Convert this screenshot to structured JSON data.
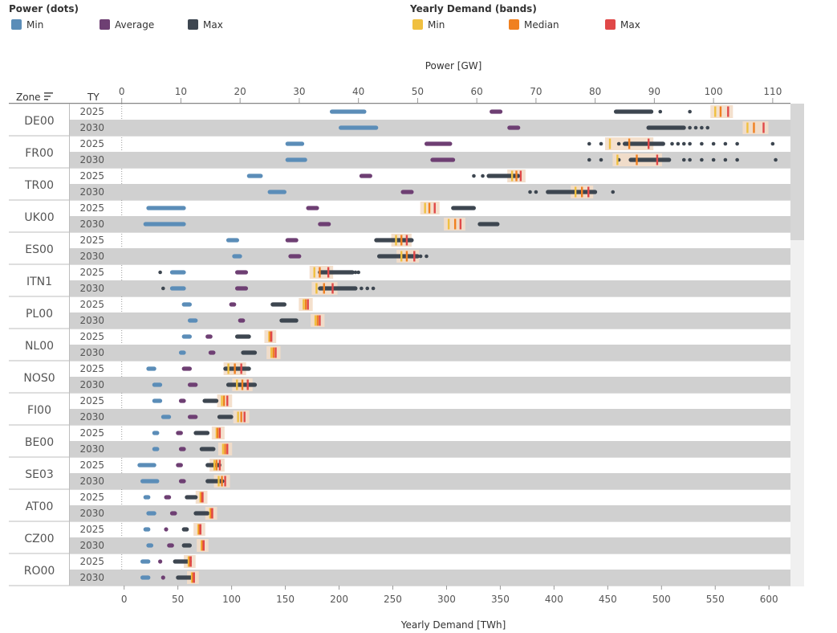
{
  "legend": {
    "power_title": "Power (dots)",
    "power_items": [
      {
        "label": "Min",
        "color": "#5b8db8"
      },
      {
        "label": "Average",
        "color": "#6e3f73"
      },
      {
        "label": "Max",
        "color": "#3d4650"
      }
    ],
    "demand_title": "Yearly Demand (bands)",
    "demand_items": [
      {
        "label": "Min",
        "color": "#f0c040"
      },
      {
        "label": "Median",
        "color": "#f08020"
      },
      {
        "label": "Max",
        "color": "#e04848"
      }
    ]
  },
  "headers": {
    "zone": "Zone",
    "ty": "TY"
  },
  "chart_data": {
    "type": "scatter",
    "top_axis": {
      "label": "Power [GW]",
      "range": [
        -0.5,
        113
      ],
      "ticks": [
        0,
        10,
        20,
        30,
        40,
        50,
        60,
        70,
        80,
        90,
        100,
        110
      ]
    },
    "bottom_axis": {
      "label": "Yearly Demand [TWh]",
      "range": [
        -5,
        620
      ],
      "ticks": [
        0,
        50,
        100,
        150,
        200,
        250,
        300,
        350,
        400,
        450,
        500,
        550,
        600
      ]
    },
    "rows": [
      {
        "zone": "DE00",
        "ty": "2025",
        "pmin": [
          35.5,
          41
        ],
        "pavg": [
          62.5,
          64
        ],
        "pmax": [
          83.5,
          89.5
        ],
        "pmax_out": [
          91,
          96
        ],
        "dmin": 550,
        "dmed": 555,
        "dmax": 562
      },
      {
        "zone": "DE00",
        "ty": "2030",
        "pmin": [
          37,
          43
        ],
        "pavg": [
          65.5,
          67
        ],
        "pmax": [
          89,
          95
        ],
        "pmax_out": [
          96,
          97,
          98,
          99
        ],
        "dmin": 580,
        "dmed": 586,
        "dmax": 595
      },
      {
        "zone": "FR00",
        "ty": "2025",
        "pmin": [
          28,
          30.5
        ],
        "pavg": [
          51.5,
          55.5
        ],
        "pmax": [
          85,
          91.5
        ],
        "pmax_out": [
          79,
          81,
          84,
          93,
          94,
          95,
          96,
          98,
          100,
          102,
          104,
          110
        ],
        "dmin": 452,
        "dmed": 470,
        "dmax": 488
      },
      {
        "zone": "FR00",
        "ty": "2030",
        "pmin": [
          28,
          31
        ],
        "pavg": [
          52.5,
          56
        ],
        "pmax": [
          86,
          92.5
        ],
        "pmax_out": [
          79,
          81,
          84,
          95,
          96,
          98,
          100,
          102,
          104,
          110.5
        ],
        "dmin": 459,
        "dmed": 477,
        "dmax": 496
      },
      {
        "zone": "TR00",
        "ty": "2025",
        "pmin": [
          21.5,
          23.5
        ],
        "pavg": [
          40.5,
          42
        ],
        "pmax": [
          62,
          67
        ],
        "pmax_out": [
          59.5,
          61
        ],
        "dmin": 361,
        "dmed": 365,
        "dmax": 369
      },
      {
        "zone": "TR00",
        "ty": "2030",
        "pmin": [
          25,
          27.5
        ],
        "pavg": [
          47.5,
          49
        ],
        "pmax": [
          72,
          80
        ],
        "pmax_out": [
          69,
          70,
          83
        ],
        "dmin": 420,
        "dmed": 426,
        "dmax": 432
      },
      {
        "zone": "UK00",
        "ty": "2025",
        "pmin": [
          4.5,
          10.5
        ],
        "pavg": [
          31.5,
          33
        ],
        "pmax": [
          56,
          59.5
        ],
        "pmax_out": [],
        "dmin": 280,
        "dmed": 284,
        "dmax": 289
      },
      {
        "zone": "UK00",
        "ty": "2030",
        "pmin": [
          4,
          10.5
        ],
        "pavg": [
          33.5,
          35
        ],
        "pmax": [
          60.5,
          63.5
        ],
        "pmax_out": [],
        "dmin": 302,
        "dmed": 308,
        "dmax": 313
      },
      {
        "zone": "ES00",
        "ty": "2025",
        "pmin": [
          18,
          19.5
        ],
        "pavg": [
          28,
          29.5
        ],
        "pmax": [
          43,
          49
        ],
        "pmax_out": [],
        "dmin": 253,
        "dmed": 258,
        "dmax": 263
      },
      {
        "zone": "ES00",
        "ty": "2030",
        "pmin": [
          19,
          20
        ],
        "pavg": [
          28.5,
          30
        ],
        "pmax": [
          43.5,
          50
        ],
        "pmax_out": [
          50.5,
          51.5
        ],
        "dmin": 258,
        "dmed": 263,
        "dmax": 270
      },
      {
        "zone": "ITN1",
        "ty": "2025",
        "pmin": [
          8.5,
          10.5
        ],
        "pavg": [
          19.5,
          21
        ],
        "pmax": [
          33.5,
          39
        ],
        "pmax_out": [
          6.5,
          39.5,
          40
        ],
        "dmin": 177,
        "dmed": 182,
        "dmax": 190
      },
      {
        "zone": "ITN1",
        "ty": "2030",
        "pmin": [
          8.5,
          10.5
        ],
        "pavg": [
          19.5,
          21
        ],
        "pmax": [
          33.5,
          39.5
        ],
        "pmax_out": [
          7,
          40.5,
          41.5,
          42.5
        ],
        "dmin": 179,
        "dmed": 186,
        "dmax": 194
      },
      {
        "zone": "PL00",
        "ty": "2025",
        "pmin": [
          10.5,
          11.5
        ],
        "pavg": [
          18.5,
          19
        ],
        "pmax": [
          25.5,
          27.5
        ],
        "pmax_out": [],
        "dmin": 167,
        "dmed": 169,
        "dmax": 171
      },
      {
        "zone": "PL00",
        "ty": "2030",
        "pmin": [
          11.5,
          12.5
        ],
        "pavg": [
          20,
          20.5
        ],
        "pmax": [
          27,
          29.5
        ],
        "pmax_out": [],
        "dmin": 178,
        "dmed": 180,
        "dmax": 182
      },
      {
        "zone": "NL00",
        "ty": "2025",
        "pmin": [
          10.5,
          11.5
        ],
        "pavg": [
          14.5,
          15
        ],
        "pmax": [
          19.5,
          21.5
        ],
        "pmax_out": [],
        "dmin": 135,
        "dmed": 136,
        "dmax": 137
      },
      {
        "zone": "NL00",
        "ty": "2030",
        "pmin": [
          10,
          10.5
        ],
        "pavg": [
          15,
          15.5
        ],
        "pmax": [
          20.5,
          22.5
        ],
        "pmax_out": [],
        "dmin": 137,
        "dmed": 139,
        "dmax": 141
      },
      {
        "zone": "NOS0",
        "ty": "2025",
        "pmin": [
          4.5,
          5.5
        ],
        "pavg": [
          10.5,
          11.5
        ],
        "pmax": [
          17.5,
          21.5
        ],
        "pmax_out": [],
        "dmin": 97,
        "dmed": 103,
        "dmax": 109
      },
      {
        "zone": "NOS0",
        "ty": "2030",
        "pmin": [
          5.5,
          6.5
        ],
        "pavg": [
          11.5,
          12.5
        ],
        "pmax": [
          18,
          22.5
        ],
        "pmax_out": [],
        "dmin": 105,
        "dmed": 110,
        "dmax": 115
      },
      {
        "zone": "FI00",
        "ty": "2025",
        "pmin": [
          5.5,
          6.5
        ],
        "pavg": [
          10,
          10.5
        ],
        "pmax": [
          14,
          16
        ],
        "pmax_out": [],
        "dmin": 91,
        "dmed": 93,
        "dmax": 96
      },
      {
        "zone": "FI00",
        "ty": "2030",
        "pmin": [
          7,
          8
        ],
        "pavg": [
          11.5,
          12.5
        ],
        "pmax": [
          16.5,
          18.5
        ],
        "pmax_out": [],
        "dmin": 106,
        "dmed": 109,
        "dmax": 112
      },
      {
        "zone": "BE00",
        "ty": "2025",
        "pmin": [
          5.5,
          6
        ],
        "pavg": [
          9.5,
          10
        ],
        "pmax": [
          12.5,
          14.5
        ],
        "pmax_out": [],
        "dmin": 86,
        "dmed": 87,
        "dmax": 89
      },
      {
        "zone": "BE00",
        "ty": "2030",
        "pmin": [
          5.5,
          6
        ],
        "pavg": [
          10,
          10.5
        ],
        "pmax": [
          13.5,
          15.5
        ],
        "pmax_out": [],
        "dmin": 92,
        "dmed": 94,
        "dmax": 96
      },
      {
        "zone": "SE03",
        "ty": "2025",
        "pmin": [
          3,
          5.5
        ],
        "pavg": [
          9.5,
          10
        ],
        "pmax": [
          14.5,
          16.5
        ],
        "pmax_out": [],
        "dmin": 84,
        "dmed": 86,
        "dmax": 89
      },
      {
        "zone": "SE03",
        "ty": "2030",
        "pmin": [
          3.5,
          6
        ],
        "pavg": [
          10,
          10.5
        ],
        "pmax": [
          14.5,
          17
        ],
        "pmax_out": [],
        "dmin": 88,
        "dmed": 91,
        "dmax": 94
      },
      {
        "zone": "AT00",
        "ty": "2025",
        "pmin": [
          4,
          4.5
        ],
        "pavg": [
          7.5,
          8
        ],
        "pmax": [
          11,
          12.5
        ],
        "pmax_out": [],
        "dmin": 71,
        "dmed": 72,
        "dmax": 73
      },
      {
        "zone": "AT00",
        "ty": "2030",
        "pmin": [
          4.5,
          5.5
        ],
        "pavg": [
          8.5,
          9
        ],
        "pmax": [
          12.5,
          14.5
        ],
        "pmax_out": [],
        "dmin": 80,
        "dmed": 81,
        "dmax": 82
      },
      {
        "zone": "CZ00",
        "ty": "2025",
        "pmin": [
          4,
          4.5
        ],
        "pavg": [
          7.5,
          7.5
        ],
        "pmax": [
          10.5,
          11
        ],
        "pmax_out": [],
        "dmin": 69,
        "dmed": 70,
        "dmax": 71
      },
      {
        "zone": "CZ00",
        "ty": "2030",
        "pmin": [
          4.5,
          5
        ],
        "pavg": [
          8,
          8.5
        ],
        "pmax": [
          10.5,
          11.5
        ],
        "pmax_out": [],
        "dmin": 72,
        "dmed": 73,
        "dmax": 74
      },
      {
        "zone": "RO00",
        "ty": "2025",
        "pmin": [
          3.5,
          4.5
        ],
        "pavg": [
          6.5,
          6.5
        ],
        "pmax": [
          9,
          11.5
        ],
        "pmax_out": [],
        "dmin": 60,
        "dmed": 61,
        "dmax": 62
      },
      {
        "zone": "RO00",
        "ty": "2030",
        "pmin": [
          3.5,
          4.5
        ],
        "pavg": [
          7,
          7
        ],
        "pmax": [
          9.5,
          12
        ],
        "pmax_out": [],
        "dmin": 63,
        "dmed": 64,
        "dmax": 65
      }
    ]
  }
}
